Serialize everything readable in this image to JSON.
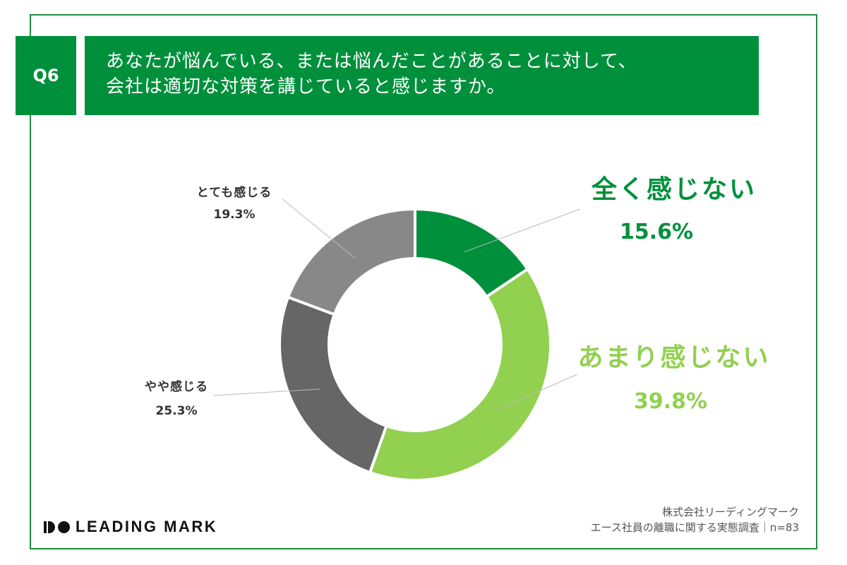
{
  "question": {
    "number": "Q6",
    "line1": "あなたが悩んでいる、または悩んだことがあることに対して、",
    "line2": "会社は適切な対策を講じていると感じますか。"
  },
  "chart_data": {
    "type": "pie",
    "variant": "donut",
    "title": "",
    "slices": [
      {
        "label": "全く感じない",
        "value": 15.6,
        "display": "15.6%",
        "color": "#00903c",
        "emphasis": true
      },
      {
        "label": "あまり感じない",
        "value": 39.8,
        "display": "39.8%",
        "color": "#92d050",
        "emphasis": true
      },
      {
        "label": "やや感じる",
        "value": 25.3,
        "display": "25.3%",
        "color": "#666666",
        "emphasis": false
      },
      {
        "label": "とても感じる",
        "value": 19.3,
        "display": "19.3%",
        "color": "#888888",
        "emphasis": false
      }
    ]
  },
  "brand": {
    "name": "LEADING MARK"
  },
  "source": {
    "line1": "株式会社リーディングマーク",
    "line2": "エース社員の離職に関する実態調査｜n=83"
  }
}
